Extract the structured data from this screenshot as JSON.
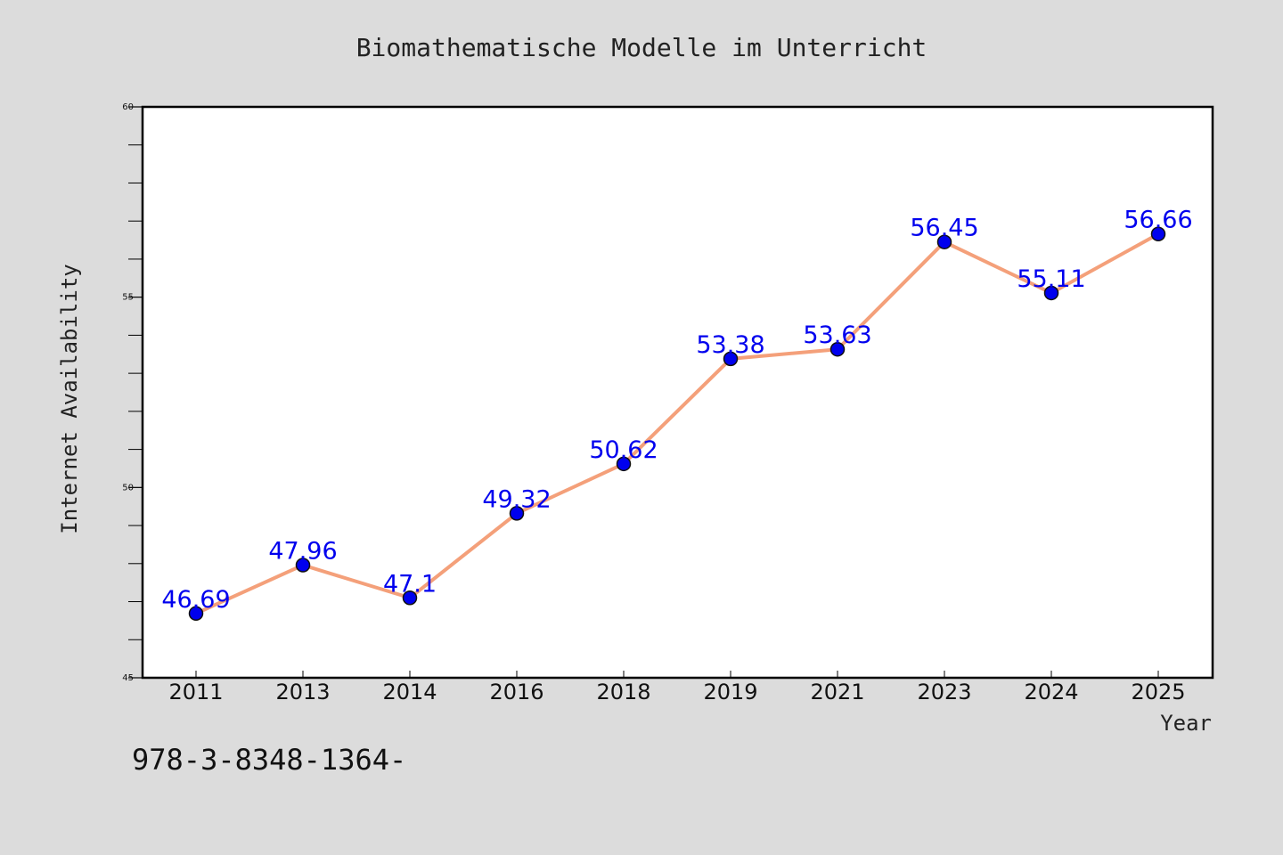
{
  "chart_data": {
    "type": "line",
    "title": "Biomathematische Modelle im Unterricht",
    "xlabel": "Year",
    "ylabel": "Internet Availability",
    "categories": [
      "2011",
      "2013",
      "2014",
      "2016",
      "2018",
      "2019",
      "2021",
      "2023",
      "2024",
      "2025"
    ],
    "series": [
      {
        "values": [
          46.69,
          47.96,
          47.1,
          49.32,
          50.62,
          53.38,
          53.63,
          56.45,
          55.11,
          56.66
        ],
        "line_color": "#f4a07a",
        "marker_color": "#0000ee",
        "label_color": "#0000ee"
      }
    ],
    "ylim": [
      45,
      60
    ],
    "yticks": [
      "45",
      "50",
      "55",
      "60"
    ],
    "grid": false,
    "legend": "none"
  },
  "footer": {
    "isbn_text": "978-3-8348-1364-"
  }
}
